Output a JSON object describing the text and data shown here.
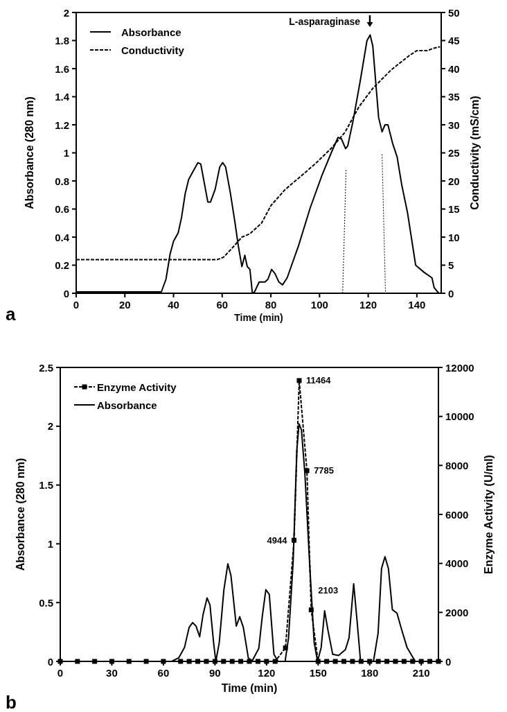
{
  "chart_data": [
    {
      "type": "line",
      "xlabel": "Time (min)",
      "ylabel": "Absorbance (280 nm)",
      "y2label": "Conductivity (mS/cm)",
      "xlim": [
        0,
        150
      ],
      "xticks": [
        0,
        20,
        40,
        60,
        80,
        100,
        120,
        140
      ],
      "ylim": [
        0,
        2
      ],
      "yticks": [
        0,
        0.2,
        0.4,
        0.6,
        0.8,
        1,
        1.2,
        1.4,
        1.6,
        1.8,
        2
      ],
      "y2lim": [
        0,
        50
      ],
      "y2ticks": [
        0,
        5,
        10,
        15,
        20,
        25,
        30,
        35,
        40,
        45,
        50
      ],
      "legend": "top left",
      "annotations": [
        "L-asparaginase",
        "a"
      ],
      "series": [
        {
          "name": "Absorbance",
          "color": "#000000",
          "line_style": "solid",
          "x": [
            0,
            35,
            36.9,
            38.6,
            40,
            41.9,
            43.3,
            44.8,
            46.2,
            48.1,
            50,
            51.2,
            54.1,
            55.2,
            57.1,
            59,
            60.2,
            61.4,
            63.3,
            65.2,
            66.6,
            68.1,
            69.3,
            70.3,
            71.4,
            72.4,
            73.3,
            75.2,
            77.6,
            78.8,
            80.3,
            81.7,
            83.3,
            84.8,
            86.7,
            91.4,
            96.2,
            101,
            104.8,
            107.6,
            109,
            110.7,
            111.6,
            113.8,
            116.7,
            119.5,
            120.8,
            121.9,
            123.3,
            124.3,
            125.7,
            126.9,
            128.1,
            130,
            131.9,
            133.8,
            136.2,
            139.5,
            142.9,
            146.2,
            147.1,
            149
          ],
          "values": [
            0.01,
            0.01,
            0.1,
            0.28,
            0.37,
            0.43,
            0.54,
            0.71,
            0.81,
            0.87,
            0.93,
            0.92,
            0.65,
            0.65,
            0.74,
            0.9,
            0.93,
            0.9,
            0.72,
            0.51,
            0.34,
            0.19,
            0.27,
            0.19,
            0.17,
            0,
            0.01,
            0.08,
            0.08,
            0.1,
            0.17,
            0.14,
            0.08,
            0.06,
            0.11,
            0.34,
            0.61,
            0.84,
            1,
            1.11,
            1.1,
            1.03,
            1.05,
            1.23,
            1.51,
            1.8,
            1.84,
            1.76,
            1.46,
            1.25,
            1.15,
            1.2,
            1.2,
            1.07,
            0.97,
            0.77,
            0.57,
            0.2,
            0.15,
            0.11,
            0.04,
            0
          ]
        },
        {
          "name": "Conductivity",
          "color": "#000000",
          "axis": "y2",
          "line_style": "dashed",
          "x": [
            0,
            58,
            60.5,
            63.8,
            68.1,
            71.4,
            76.2,
            80,
            85.7,
            91.4,
            98.1,
            104.8,
            110.5,
            116.2,
            121.9,
            129.5,
            137.1,
            140,
            144.3,
            146.7,
            149.5
          ],
          "values": [
            6,
            6,
            6.4,
            7.9,
            10,
            10.6,
            12.5,
            15.6,
            18.4,
            20.5,
            23,
            25.8,
            28.7,
            33.2,
            36.5,
            39.8,
            42.4,
            43.2,
            43.2,
            43.6,
            43.9
          ]
        },
        {
          "color": "#000000",
          "line_style": "dotted",
          "x": [
            109.5,
            110.9
          ],
          "values": [
            0,
            0.88
          ]
        },
        {
          "color": "#000000",
          "line_style": "dotted",
          "x": [
            125.7,
            127.1
          ],
          "values": [
            0.99,
            0
          ]
        }
      ]
    },
    {
      "type": "line",
      "xlabel": "Time (min)",
      "ylabel": "Absorbance (280 nm)",
      "y2label": "Enzyme Activity (U/ml)",
      "xlim": [
        0,
        220
      ],
      "xticks": [
        0,
        30,
        60,
        90,
        120,
        150,
        180,
        210
      ],
      "ylim": [
        0,
        2.5
      ],
      "yticks": [
        0,
        0.5,
        1,
        1.5,
        2,
        2.5
      ],
      "y2lim": [
        0,
        12000
      ],
      "y2ticks": [
        0,
        2000,
        4000,
        6000,
        8000,
        10000,
        12000
      ],
      "legend": "top left",
      "annotations": [
        "b"
      ],
      "series": [
        {
          "name": "Enzyme Activity",
          "color": "#000000",
          "axis": "y2",
          "marker": "square",
          "line_style": "dashed",
          "x": [
            0,
            10,
            20,
            30,
            40,
            50,
            60,
            70,
            75,
            80,
            85,
            90,
            95,
            100,
            105,
            110,
            115,
            120,
            125,
            131,
            136,
            139,
            143.5,
            146,
            150,
            155,
            160,
            165,
            170,
            175,
            180,
            185,
            190,
            195,
            200,
            205,
            210,
            215,
            220
          ],
          "values": [
            0,
            0,
            0,
            0,
            0,
            0,
            0,
            0,
            0,
            0,
            0,
            0,
            0,
            0,
            0,
            0,
            0,
            0,
            0,
            550,
            4944,
            11464,
            7785,
            2103,
            0,
            0,
            0,
            0,
            0,
            0,
            0,
            0,
            0,
            0,
            0,
            0,
            0,
            0,
            0
          ],
          "value_labels": [
            null,
            null,
            null,
            null,
            null,
            null,
            null,
            null,
            null,
            null,
            null,
            null,
            null,
            null,
            null,
            null,
            null,
            null,
            null,
            null,
            "4944",
            "11464",
            "7785",
            "2103",
            null,
            null,
            null,
            null,
            null,
            null,
            null,
            null,
            null,
            null,
            null,
            null,
            null,
            null,
            null
          ]
        },
        {
          "name": "Absorbance",
          "color": "#000000",
          "line_style": "solid",
          "x": [
            0,
            64.8,
            68.9,
            72.3,
            75,
            77,
            79,
            81.1,
            83.1,
            85.4,
            87.1,
            89.2,
            90.5,
            92.5,
            95.2,
            97.5,
            99.3,
            102.4,
            104.4,
            106.5,
            109.4,
            111.5,
            115.5,
            117.5,
            119.6,
            121.6,
            124.3,
            126.7,
            130.8,
            132.8,
            135.5,
            137.6,
            138.9,
            140.3,
            142.3,
            145,
            147.7,
            149.7,
            151.8,
            153.8,
            155.8,
            158.5,
            161.9,
            165.9,
            168,
            170.7,
            172.7,
            174.7,
            182.2,
            184.9,
            186.9,
            188.9,
            190.9,
            193.2,
            195.9,
            198.4,
            201.7,
            206.5,
            220
          ],
          "values": [
            0,
            0,
            0.03,
            0.12,
            0.29,
            0.33,
            0.3,
            0.21,
            0.4,
            0.54,
            0.48,
            0.16,
            0,
            0.16,
            0.61,
            0.83,
            0.73,
            0.3,
            0.38,
            0.29,
            0.03,
            0,
            0.11,
            0.38,
            0.61,
            0.57,
            0.06,
            0,
            0,
            0.2,
            0.85,
            1.79,
            2.02,
            1.97,
            1.6,
            0.85,
            0.16,
            0,
            0.12,
            0.43,
            0.26,
            0.06,
            0.05,
            0.1,
            0.2,
            0.66,
            0.34,
            0,
            0,
            0.24,
            0.79,
            0.89,
            0.79,
            0.44,
            0.41,
            0.28,
            0.12,
            0,
            0
          ]
        }
      ]
    }
  ]
}
